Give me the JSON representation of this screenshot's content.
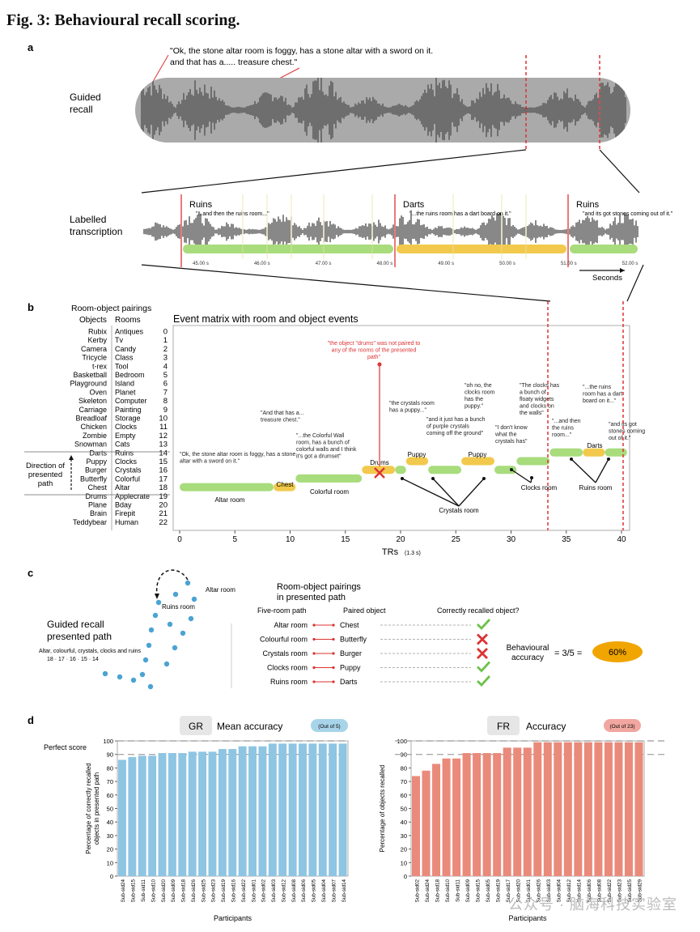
{
  "figure_title": "Fig. 3: Behavioural recall scoring.",
  "panel_a": {
    "letter": "a",
    "quote": "\"Ok, the stone altar room is foggy, has a stone altar with a sword on it. and that has a..... treasure chest.\"",
    "quote_line1": "\"Ok, the stone altar room is foggy, has a stone altar with a sword on it.",
    "quote_line2": "and that has a..... treasure chest.\"",
    "guided_line1": "Guided",
    "guided_line2": "recall",
    "labelled_line1": "Labelled",
    "labelled_line2": "transcription",
    "segments": [
      {
        "label": "Ruins",
        "quote": "\"...and then the ruins room...\"",
        "color": "#a8dc7c"
      },
      {
        "label": "Darts",
        "quote": "\"...the ruins room has a dart board on it.\"",
        "color": "#f2c94c"
      },
      {
        "label": "Ruins",
        "quote": "\"and its got stones coming out of it.\"",
        "color": "#a8dc7c"
      }
    ],
    "time_ticks": [
      "45.00 s",
      "46.00 s",
      "47.00 s",
      "48.00 s",
      "49.00 s",
      "50.00 s",
      "51.00 s",
      "52.00 s"
    ],
    "seconds_label": "Seconds"
  },
  "panel_b": {
    "letter": "b",
    "pairings_header": "Room-object pairings",
    "objects_header": "Objects",
    "rooms_header": "Rooms",
    "matrix_title": "Event matrix with room and object events",
    "rows": [
      {
        "object": "Rubix",
        "room": "Antiques",
        "index": "0"
      },
      {
        "object": "Kerby",
        "room": "Tv",
        "index": "1"
      },
      {
        "object": "Camera",
        "room": "Candy",
        "index": "2"
      },
      {
        "object": "Tricycle",
        "room": "Class",
        "index": "3"
      },
      {
        "object": "t-rex",
        "room": "Tool",
        "index": "4"
      },
      {
        "object": "Basketball",
        "room": "Bedroom",
        "index": "5"
      },
      {
        "object": "Playground",
        "room": "Island",
        "index": "6"
      },
      {
        "object": "Oven",
        "room": "Planet",
        "index": "7"
      },
      {
        "object": "Skeleton",
        "room": "Computer",
        "index": "8"
      },
      {
        "object": "Carriage",
        "room": "Painting",
        "index": "9"
      },
      {
        "object": "Breadloaf",
        "room": "Storage",
        "index": "10"
      },
      {
        "object": "Chicken",
        "room": "Clocks",
        "index": "11"
      },
      {
        "object": "Zombie",
        "room": "Empty",
        "index": "12"
      },
      {
        "object": "Snowman",
        "room": "Cats",
        "index": "13"
      },
      {
        "object": "Darts",
        "room": "Ruins",
        "index": "14"
      },
      {
        "object": "Puppy",
        "room": "Clocks",
        "index": "15"
      },
      {
        "object": "Burger",
        "room": "Crystals",
        "index": "16"
      },
      {
        "object": "Butterfly",
        "room": "Colorful",
        "index": "17"
      },
      {
        "object": "Chest",
        "room": "Altar",
        "index": "18"
      },
      {
        "object": "Drums",
        "room": "Applecrate",
        "index": "19"
      },
      {
        "object": "Plane",
        "room": "Bday",
        "index": "20"
      },
      {
        "object": "Brain",
        "room": "Firepit",
        "index": "21"
      },
      {
        "object": "Teddybear",
        "room": "Human",
        "index": "22"
      }
    ],
    "direction_line1": "Direction of",
    "direction_line2": "presented",
    "direction_line3": "path",
    "x_ticks": [
      "0",
      "5",
      "10",
      "15",
      "20",
      "25",
      "30",
      "35",
      "40"
    ],
    "x_label": "TRs",
    "x_label_unit": "(1.3 s)",
    "events": [
      {
        "type": "room",
        "row": 18,
        "start": 0,
        "end": 8.5,
        "label": "Altar room"
      },
      {
        "type": "object",
        "row": 18,
        "start": 8.5,
        "end": 10.5,
        "label": "Chest"
      },
      {
        "type": "room",
        "row": 17,
        "start": 10.5,
        "end": 16.5,
        "label": "Colorful room"
      },
      {
        "type": "object",
        "row": 16,
        "start": 16.5,
        "end": 19.5,
        "label": "Drums"
      },
      {
        "type": "room",
        "row": 16,
        "start": 19.5,
        "end": 20.5,
        "label": ""
      },
      {
        "type": "object",
        "row": 15,
        "start": 20.5,
        "end": 22.5,
        "label": "Puppy"
      },
      {
        "type": "room",
        "row": 16,
        "start": 22.5,
        "end": 25.5,
        "label": ""
      },
      {
        "type": "object",
        "row": 15,
        "start": 25.5,
        "end": 28.5,
        "label": "Puppy"
      },
      {
        "type": "room",
        "row": 16,
        "start": 28.5,
        "end": 30.5,
        "label": ""
      },
      {
        "type": "room",
        "row": 15,
        "start": 30.5,
        "end": 33.5,
        "label": ""
      },
      {
        "type": "room",
        "row": 14,
        "start": 33.5,
        "end": 36.5,
        "label": ""
      },
      {
        "type": "object",
        "row": 14,
        "start": 36.5,
        "end": 38.5,
        "label": "Darts"
      },
      {
        "type": "room",
        "row": 14,
        "start": 38.5,
        "end": 40.5,
        "label": ""
      }
    ],
    "annotations": [
      "\"Ok, the stone altar room is foggy, has a stone altar with a sword on it.\"",
      "\"And that has a... treasure chest.\"",
      "\"...the Colorful Wall room, has a bunch of colorful walls and I think it's got a drumset\"",
      "\"the object \"drums\" was not paired to any of the rooms of the presented path\"",
      "\"the crystals room has a puppy...\"",
      "\"and it just has a bunch of purple crystals coming off the ground\"",
      "\"oh no, the clocks room has the puppy.\"",
      "\"I don't know what the crystals has\"",
      "\"The clocks has a bunch of floaty widgets and clocks on the walls\"",
      "\"...and then the ruins room...\"",
      "\"...the ruins room has a dart board on it...\"",
      "\"and its got stones coming out of it.\""
    ],
    "room_callouts": [
      "Crystals room",
      "Clocks room",
      "Ruins room"
    ],
    "drums_label": "Drums"
  },
  "panel_c": {
    "letter": "c",
    "altar_room": "Altar room",
    "ruins_room": "Ruins room",
    "gr_line1": "Guided recall",
    "gr_line2": "presented path",
    "path_text": "Altar, colourful, crystals, clocks and ruins",
    "path_numbers": "18  ·  17  ·  16  ·  15  ·  14",
    "pairings_line1": "Room-object pairings",
    "pairings_line2": "in presented path",
    "col_path": "Five-room path",
    "col_object": "Paired object",
    "col_correct": "Correctly recalled object?",
    "rows": [
      {
        "room": "Altar room",
        "object": "Chest",
        "correct": true
      },
      {
        "room": "Colourful room",
        "object": "Butterfly",
        "correct": false
      },
      {
        "room": "Crystals room",
        "object": "Burger",
        "correct": false
      },
      {
        "room": "Clocks room",
        "object": "Puppy",
        "correct": true
      },
      {
        "room": "Ruins room",
        "object": "Darts",
        "correct": true
      }
    ],
    "behav_line1": "Behavioural",
    "behav_line2": "accuracy",
    "fraction": "= 3/5 =",
    "result": "60%"
  },
  "panel_d": {
    "letter": "d",
    "perfect_score": "Perfect score",
    "x_label": "Participants",
    "chart_data": [
      {
        "type": "bar",
        "badge": "GR",
        "title": "Mean accuracy",
        "note": "(Out of 5)",
        "ylabel_line1": "Percentage of correctly recalled",
        "ylabel_line2": "objects in presented path",
        "yticks": [
          "0",
          "10",
          "20",
          "30",
          "40",
          "50",
          "60",
          "70",
          "80",
          "90",
          "100"
        ],
        "ylim": [
          0,
          100
        ],
        "color": "#8ec5e3",
        "categories": [
          "Sub-sid24",
          "Sub-sid15",
          "Sub-sid11",
          "Sub-sid10",
          "Sub-sid20",
          "Sub-sid09",
          "Sub-sid18",
          "Sub-sid26",
          "Sub-sid25",
          "Sub-sid23",
          "Sub-sid19",
          "Sub-sid16",
          "Sub-sid22",
          "Sub-sid01",
          "Sub-sid02",
          "Sub-sid03",
          "Sub-sid12",
          "Sub-sid08",
          "Sub-sid06",
          "Sub-sid05",
          "Sub-sid04",
          "Sub-sid07",
          "Sub-sid14"
        ],
        "values": [
          86,
          88,
          89,
          89,
          91,
          91,
          91,
          92,
          92,
          92,
          94,
          94,
          96,
          96,
          96,
          98,
          98,
          98,
          98,
          98,
          98,
          98,
          98
        ]
      },
      {
        "type": "bar",
        "badge": "FR",
        "title": "Accuracy",
        "note": "(Out of 23)",
        "ylabel_line1": "Percentage of objects recalled",
        "ylabel_line2": "",
        "yticks": [
          "0",
          "10",
          "20",
          "30",
          "40",
          "50",
          "60",
          "70",
          "80",
          "90",
          "100"
        ],
        "ylim": [
          0,
          100
        ],
        "color": "#ea8a7b",
        "categories": [
          "Sub-sid02",
          "Sub-sid24",
          "Sub-sid18",
          "Sub-sid10",
          "Sub-sid11",
          "Sub-sid09",
          "Sub-sid15",
          "Sub-sid05",
          "Sub-sid19",
          "Sub-sid17",
          "Sub-sid20",
          "Sub-sid01",
          "Sub-sid26",
          "Sub-sid03",
          "Sub-sid04",
          "Sub-sid12",
          "Sub-sid14",
          "Sub-sid06",
          "Sub-sid08",
          "Sub-sid22",
          "Sub-sid23",
          "Sub-sid25",
          "Sub-sid29"
        ],
        "values": [
          74,
          78,
          83,
          87,
          87,
          91,
          91,
          91,
          91,
          95,
          95,
          95,
          99,
          99,
          99,
          99,
          99,
          99,
          99,
          99,
          99,
          99,
          99
        ]
      }
    ]
  },
  "watermark": "公众号 · 脑海科技实验室"
}
